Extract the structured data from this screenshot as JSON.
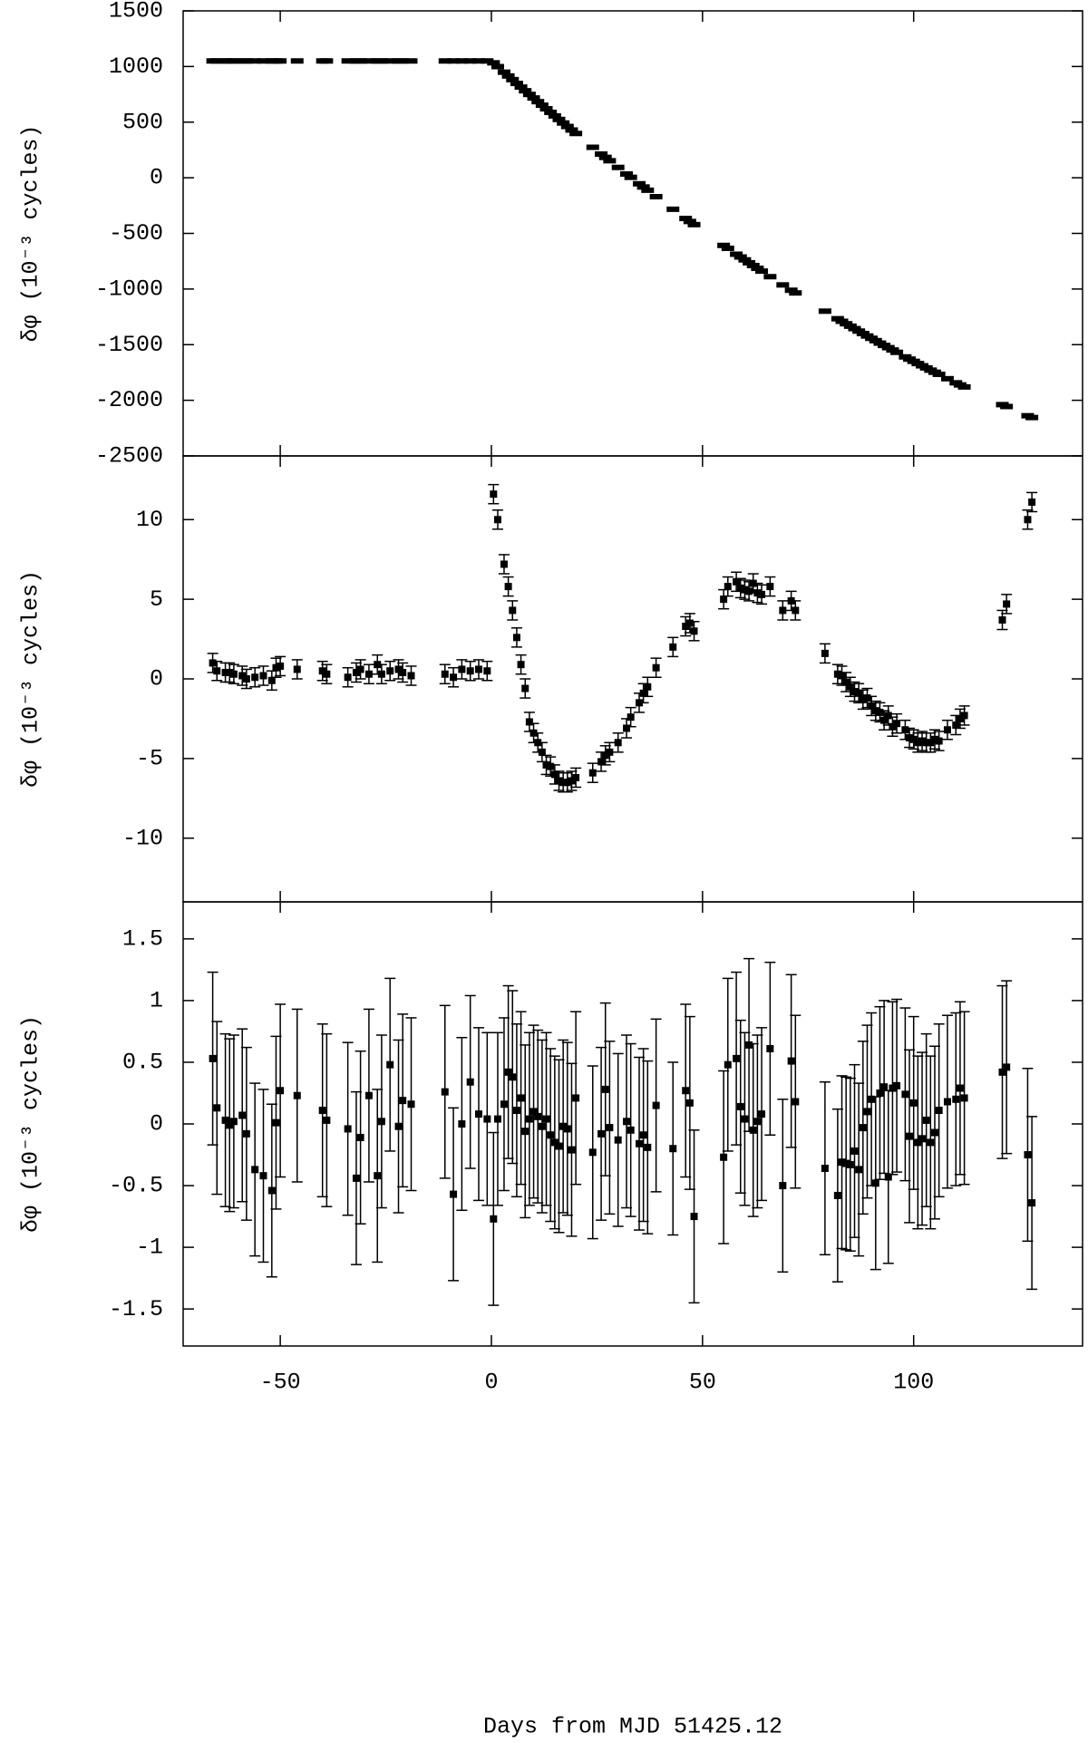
{
  "chart_data": [
    {
      "type": "scatter",
      "ylabel": "δφ (10⁻³ cycles)",
      "xlim": [
        -73,
        140
      ],
      "xticks": [
        -50,
        0,
        50,
        100
      ],
      "ylim": [
        -2500,
        1500
      ],
      "yticks": [
        -2500,
        -2000,
        -1500,
        -1000,
        -500,
        0,
        500,
        1000,
        1500
      ],
      "color": "#000000",
      "x": [
        -66,
        -65,
        -63,
        -62,
        -61,
        -59,
        -58,
        -56,
        -54,
        -52,
        -51,
        -50,
        -46,
        -40,
        -39,
        -34,
        -32,
        -31,
        -29,
        -27,
        -26,
        -24,
        -22,
        -21,
        -19,
        -11,
        -9,
        -7,
        -5,
        -3,
        -1,
        0.5,
        1.5,
        3,
        4,
        5,
        6,
        7,
        8,
        9,
        10,
        11,
        12,
        13,
        14,
        15,
        16,
        17,
        18,
        19,
        20,
        24,
        26,
        27,
        28,
        30,
        32,
        33,
        35,
        36,
        37,
        39,
        43,
        46,
        47,
        48,
        55,
        56,
        58,
        59,
        60,
        61,
        62,
        63,
        64,
        66,
        69,
        71,
        72,
        79,
        82,
        83,
        84,
        85,
        86,
        87,
        88,
        89,
        90,
        91,
        92,
        93,
        94,
        95,
        96,
        98,
        99,
        100,
        101,
        102,
        103,
        104,
        105,
        106,
        108,
        110,
        111,
        112,
        121,
        122,
        127,
        128
      ],
      "values": [
        1050,
        1050,
        1050,
        1050,
        1050,
        1050,
        1050,
        1050,
        1050,
        1050,
        1050,
        1050,
        1050,
        1050,
        1050,
        1050,
        1050,
        1050,
        1050,
        1050,
        1050,
        1050,
        1050,
        1050,
        1050,
        1050,
        1050,
        1050,
        1050,
        1050,
        1050,
        1033,
        999,
        949,
        915,
        882,
        848,
        815,
        782,
        749,
        717,
        684,
        652,
        620,
        588,
        556,
        524,
        492,
        461,
        429,
        398,
        274,
        213,
        183,
        153,
        93,
        34,
        4,
        -54,
        -83,
        -112,
        -170,
        -283,
        -366,
        -393,
        -421,
        -608,
        -634,
        -687,
        -712,
        -738,
        -764,
        -789,
        -814,
        -839,
        -889,
        -963,
        -1011,
        -1035,
        -1199,
        -1267,
        -1290,
        -1312,
        -1334,
        -1356,
        -1378,
        -1400,
        -1422,
        -1443,
        -1464,
        -1486,
        -1507,
        -1527,
        -1548,
        -1569,
        -1610,
        -1630,
        -1650,
        -1670,
        -1690,
        -1709,
        -1729,
        -1748,
        -1767,
        -1806,
        -1843,
        -1862,
        -1880,
        -2039,
        -2056,
        -2139,
        -2155
      ]
    },
    {
      "type": "scatter",
      "ylabel": "δφ (10⁻³ cycles)",
      "xlim": [
        -73,
        140
      ],
      "xticks": [
        -50,
        0,
        50,
        100
      ],
      "ylim": [
        -14,
        14
      ],
      "yticks": [
        -10,
        -5,
        0,
        5,
        10
      ],
      "color": "#000000",
      "yerr": 0.6,
      "x": [
        -66,
        -65,
        -63,
        -62,
        -61,
        -59,
        -58,
        -56,
        -54,
        -52,
        -51,
        -50,
        -46,
        -40,
        -39,
        -34,
        -32,
        -31,
        -29,
        -27,
        -26,
        -24,
        -22,
        -21,
        -19,
        -11,
        -9,
        -7,
        -5,
        -3,
        -1,
        0.5,
        1.5,
        3,
        4,
        5,
        6,
        7,
        8,
        9,
        10,
        11,
        12,
        13,
        14,
        15,
        16,
        17,
        18,
        19,
        20,
        24,
        26,
        27,
        28,
        30,
        32,
        33,
        35,
        36,
        37,
        39,
        43,
        46,
        47,
        48,
        55,
        56,
        58,
        59,
        60,
        61,
        62,
        63,
        64,
        66,
        69,
        71,
        72,
        79,
        82,
        83,
        84,
        85,
        86,
        87,
        88,
        89,
        90,
        91,
        92,
        93,
        94,
        95,
        96,
        98,
        99,
        100,
        101,
        102,
        103,
        104,
        105,
        106,
        108,
        110,
        111,
        112,
        121,
        122,
        127,
        128
      ],
      "values": [
        1.0,
        0.5,
        0.4,
        0.4,
        0.3,
        0.2,
        0.0,
        0.1,
        0.2,
        -0.1,
        0.7,
        0.8,
        0.6,
        0.5,
        0.3,
        0.1,
        0.4,
        0.6,
        0.3,
        0.9,
        0.3,
        0.5,
        0.6,
        0.4,
        0.2,
        0.3,
        0.1,
        0.6,
        0.5,
        0.6,
        0.5,
        11.6,
        10.0,
        7.2,
        5.8,
        4.3,
        2.6,
        0.9,
        -0.6,
        -2.7,
        -3.4,
        -4.0,
        -4.6,
        -5.4,
        -5.5,
        -6.0,
        -6.4,
        -6.5,
        -6.5,
        -6.4,
        -6.2,
        -5.9,
        -5.2,
        -4.8,
        -4.6,
        -4.0,
        -3.1,
        -2.4,
        -1.5,
        -0.9,
        -0.5,
        0.7,
        2.0,
        3.3,
        3.5,
        3.0,
        5.0,
        5.8,
        6.1,
        5.7,
        5.6,
        5.5,
        6.0,
        5.4,
        5.3,
        5.8,
        4.3,
        4.9,
        4.3,
        1.6,
        0.3,
        0.2,
        -0.2,
        -0.5,
        -0.8,
        -0.9,
        -1.3,
        -1.2,
        -1.7,
        -2.0,
        -2.1,
        -2.6,
        -2.3,
        -3.0,
        -2.8,
        -3.2,
        -3.7,
        -3.8,
        -4.0,
        -3.9,
        -4.0,
        -4.0,
        -3.8,
        -3.9,
        -3.2,
        -2.9,
        -2.5,
        -2.3,
        3.7,
        4.7,
        10.0,
        11.1
      ]
    },
    {
      "type": "scatter",
      "ylabel": "δφ (10⁻³ cycles)",
      "xlabel": "Days from MJD 51425.12",
      "xlim": [
        -73,
        140
      ],
      "xticks": [
        -50,
        0,
        50,
        100
      ],
      "ylim": [
        -1.8,
        1.8
      ],
      "yticks": [
        -1.5,
        -1,
        -0.5,
        0,
        0.5,
        1,
        1.5
      ],
      "color": "#000000",
      "yerr": 0.7,
      "x": [
        -66,
        -65,
        -63,
        -62,
        -61,
        -59,
        -58,
        -56,
        -54,
        -52,
        -51,
        -50,
        -46,
        -40,
        -39,
        -34,
        -32,
        -31,
        -29,
        -27,
        -26,
        -24,
        -22,
        -21,
        -19,
        -11,
        -9,
        -7,
        -5,
        -3,
        -1,
        0.5,
        1.5,
        3,
        4,
        5,
        6,
        7,
        8,
        9,
        10,
        11,
        12,
        13,
        14,
        15,
        16,
        17,
        18,
        19,
        20,
        24,
        26,
        27,
        28,
        30,
        32,
        33,
        35,
        36,
        37,
        39,
        43,
        46,
        47,
        48,
        55,
        56,
        58,
        59,
        60,
        61,
        62,
        63,
        64,
        66,
        69,
        71,
        72,
        79,
        82,
        83,
        84,
        85,
        86,
        87,
        88,
        89,
        90,
        91,
        92,
        93,
        94,
        95,
        96,
        98,
        99,
        100,
        101,
        102,
        103,
        104,
        105,
        106,
        108,
        110,
        111,
        112,
        121,
        122,
        127,
        128
      ],
      "values": [
        0.53,
        0.13,
        0.03,
        -0.01,
        0.02,
        0.07,
        -0.08,
        -0.37,
        -0.42,
        -0.54,
        0.01,
        0.27,
        0.23,
        0.11,
        0.03,
        -0.04,
        -0.44,
        -0.11,
        0.23,
        -0.42,
        0.02,
        0.48,
        -0.02,
        0.19,
        0.16,
        0.26,
        -0.57,
        0.0,
        0.34,
        0.08,
        0.04,
        -0.77,
        0.04,
        0.16,
        0.42,
        0.38,
        0.11,
        0.21,
        -0.06,
        0.04,
        0.1,
        0.06,
        -0.02,
        0.04,
        -0.09,
        -0.15,
        -0.18,
        -0.02,
        -0.04,
        -0.21,
        0.21,
        -0.23,
        -0.08,
        0.28,
        -0.03,
        -0.13,
        0.02,
        -0.05,
        -0.16,
        -0.09,
        -0.19,
        0.15,
        -0.2,
        0.27,
        0.17,
        -0.75,
        -0.27,
        0.48,
        0.53,
        0.14,
        0.04,
        0.64,
        -0.05,
        0.02,
        0.08,
        0.61,
        -0.5,
        0.51,
        0.18,
        -0.36,
        -0.58,
        -0.31,
        -0.32,
        -0.33,
        -0.22,
        -0.37,
        -0.03,
        0.1,
        0.2,
        -0.48,
        0.25,
        0.3,
        -0.43,
        0.29,
        0.31,
        0.24,
        -0.1,
        0.17,
        -0.15,
        -0.12,
        0.03,
        -0.15,
        -0.07,
        0.11,
        0.18,
        0.2,
        0.29,
        0.21,
        0.42,
        0.46,
        -0.25,
        -0.64
      ]
    }
  ]
}
